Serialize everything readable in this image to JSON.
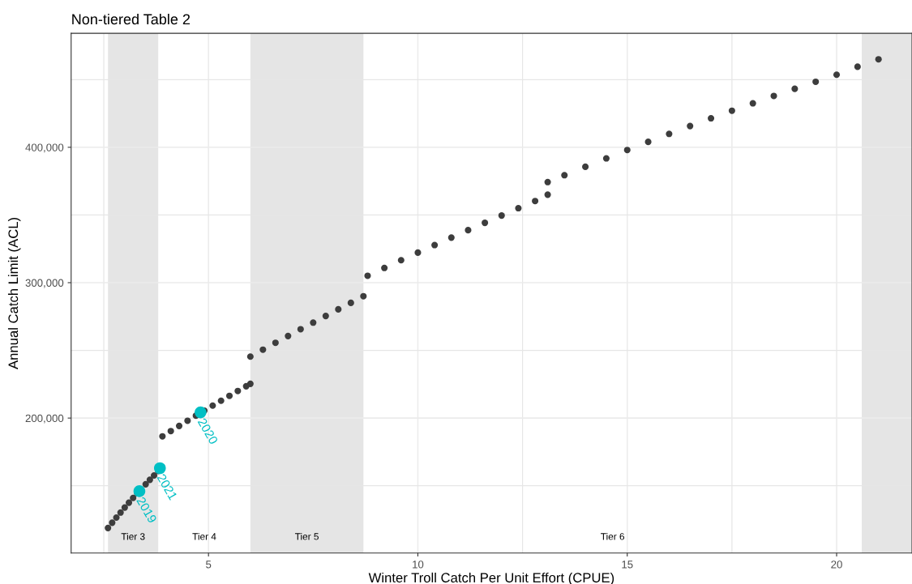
{
  "chart_data": {
    "type": "scatter",
    "title": "Non-tiered Table 2",
    "xlabel": "Winter Troll Catch Per Unit Effort (CPUE)",
    "ylabel": "Annual Catch Limit (ACL)",
    "xlim": [
      1.72,
      21.8
    ],
    "ylim": [
      100300,
      484200
    ],
    "xticks": [
      {
        "value": 2.5,
        "label": null
      },
      5,
      10,
      {
        "value": 12.5,
        "label": null
      },
      15,
      {
        "value": 17.5,
        "label": null
      },
      20
    ],
    "yticks": [
      {
        "value": 150000,
        "label": null
      },
      {
        "value": 200000,
        "label": "200,000"
      },
      {
        "value": 250000,
        "label": null
      },
      {
        "value": 300000,
        "label": "300,000"
      },
      {
        "value": 350000,
        "label": null
      },
      {
        "value": 400000,
        "label": "400,000"
      },
      {
        "value": 450000,
        "label": null
      }
    ],
    "grid": true,
    "legend": false,
    "marker": "circle",
    "bands": [
      {
        "axis": "x",
        "from": 2.6,
        "to": 3.8,
        "color": "#e5e5e5",
        "label": "Tier 3"
      },
      {
        "axis": "x",
        "from": 6.0,
        "to": 8.7,
        "color": "#e5e5e5",
        "label": "Tier 5"
      },
      {
        "axis": "x",
        "from": 20.6,
        "to": 21.8,
        "color": "#e5e5e5"
      }
    ],
    "series": [
      {
        "color": "#3d3d3d",
        "x": [
          2.6,
          2.7,
          2.8,
          2.9,
          3.0,
          3.1,
          3.2,
          3.3,
          3.5,
          3.6,
          3.7,
          3.8,
          3.9,
          4.1,
          4.3,
          4.5,
          4.7,
          4.9,
          5.1,
          5.3,
          5.5,
          5.7,
          5.9,
          6.0,
          6.0,
          6.3,
          6.6,
          6.9,
          7.2,
          7.5,
          7.8,
          8.1,
          8.4,
          8.7,
          8.8,
          9.2,
          9.6,
          10.0,
          10.4,
          10.8,
          11.2,
          11.6,
          12.0,
          12.4,
          12.8,
          13.1,
          13.1,
          13.5,
          14.0,
          14.5,
          15.0,
          15.5,
          16.0,
          16.5,
          17.0,
          17.5,
          18.0,
          18.5,
          19.0,
          19.5,
          20.0,
          20.5,
          21.0
        ],
        "values": [
          118800,
          122700,
          126500,
          130200,
          133900,
          137500,
          141000,
          144400,
          151100,
          154400,
          157600,
          161000,
          186500,
          190400,
          194200,
          198000,
          201800,
          205500,
          209200,
          212800,
          216400,
          220000,
          223500,
          225300,
          245400,
          250500,
          255600,
          260600,
          265600,
          270500,
          275400,
          280300,
          285100,
          290000,
          305100,
          310900,
          316600,
          322200,
          327800,
          333300,
          338800,
          344200,
          349600,
          355000,
          360300,
          365000,
          374300,
          379400,
          385600,
          391800,
          398000,
          404000,
          409900,
          415700,
          421400,
          427000,
          432500,
          437900,
          443200,
          448400,
          453600,
          459500,
          465000
        ]
      },
      {
        "color": "#00bfc4",
        "x": [
          3.35,
          3.84,
          4.81
        ],
        "values": [
          146000,
          163000,
          204200
        ]
      }
    ],
    "annotations": [
      {
        "text": "2019",
        "x": 3.35,
        "y": 146000
      },
      {
        "text": "2021",
        "x": 3.84,
        "y": 163000
      },
      {
        "text": "2020",
        "x": 4.81,
        "y": 204200
      },
      "Tier 4",
      "Tier 6"
    ]
  }
}
